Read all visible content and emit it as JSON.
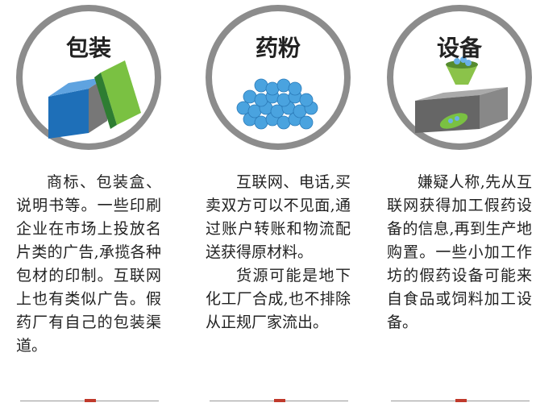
{
  "columns": [
    {
      "title": "包装",
      "paragraphs": [
        "商标、包装盒、说明书等。一些印刷企业在市场上投放名片类的广告,承揽各种包材的印制。互联网上也有类似广告。假药厂有自己的包装渠道。"
      ]
    },
    {
      "title": "药粉",
      "paragraphs": [
        "互联网、电话,买卖双方可以不见面,通过账户转账和物流配送获得原材料。",
        "货源可能是地下化工厂合成,也不排除从正规厂家流出。"
      ]
    },
    {
      "title": "设备",
      "paragraphs": [
        "嫌疑人称,先从互联网获得加工假药设备的信息,再到生产地购置。一些小加工作坊的假药设备可能来自食品或饲料加工设备。"
      ]
    }
  ]
}
